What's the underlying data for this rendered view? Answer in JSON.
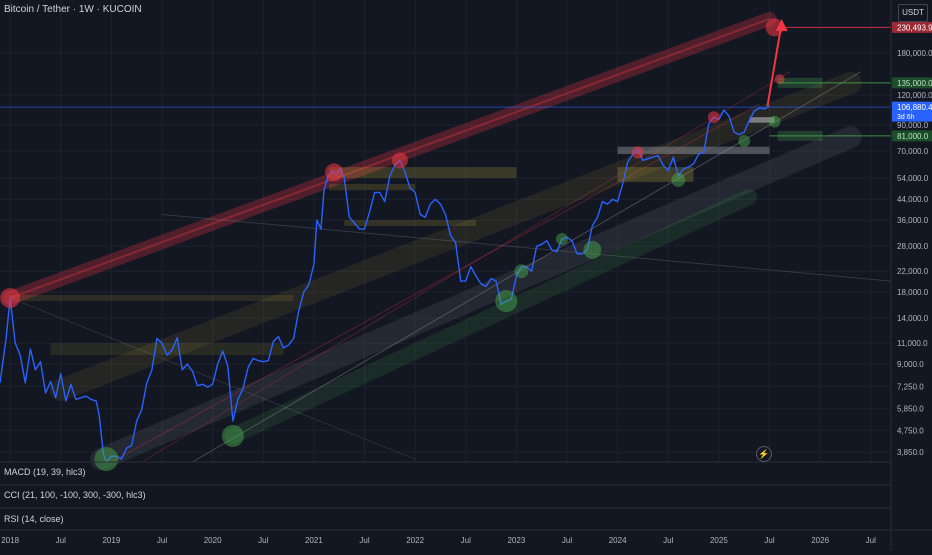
{
  "title": "Bitcoin / Tether · 1W · KUCOIN",
  "currency": "USDT",
  "indicators": {
    "macd": "MACD (19, 39, hlc3)",
    "cci": "CCI (21, 100, -100, 300, -300, hlc3)",
    "rsi": "RSI (14, close)"
  },
  "price_tags": {
    "target": "230,493.9",
    "upper_zone": "135,000.0",
    "last_price": "106,880.4",
    "countdown": "3d 6h",
    "lower_zone": "81,000.0"
  },
  "icons": {
    "flash": "lightning-icon"
  },
  "colors": {
    "background": "#131722",
    "price_line": "#2962ff",
    "resistance": "#f23645",
    "support": "#4caf50",
    "zone_yellow": "#c9b43a",
    "channel_gray": "#9598a1"
  },
  "chart_data": {
    "type": "line",
    "title": "Bitcoin / Tether · 1W · KUCOIN",
    "xlabel": "",
    "ylabel": "",
    "y_scale": "log",
    "ylim": [
      3500,
      300000
    ],
    "xlim": [
      2017.9,
      2026.7
    ],
    "x_tick_labels": [
      "2018",
      "Jul",
      "2019",
      "Jul",
      "2020",
      "Jul",
      "2021",
      "Jul",
      "2022",
      "Jul",
      "2023",
      "Jul",
      "2024",
      "Jul",
      "2025",
      "Jul",
      "2026",
      "Jul"
    ],
    "x_tick_values": [
      2018.0,
      2018.5,
      2019.0,
      2019.5,
      2020.0,
      2020.5,
      2021.0,
      2021.5,
      2022.0,
      2022.5,
      2023.0,
      2023.5,
      2024.0,
      2024.5,
      2025.0,
      2025.5,
      2026.0,
      2026.5
    ],
    "y_tick_labels": [
      "180,000.0",
      "120,000.0",
      "90,000.0",
      "70,000.0",
      "54,000.0",
      "44,000.0",
      "36,000.0",
      "28,000.0",
      "22,000.0",
      "18,000.0",
      "14,000.0",
      "11,000.0",
      "9,000.0",
      "7,250.0",
      "5,850.0",
      "4,750.0",
      "3,850.0"
    ],
    "y_tick_values": [
      180000,
      120000,
      90000,
      70000,
      54000,
      44000,
      36000,
      28000,
      22000,
      18000,
      14000,
      11000,
      9000,
      7250,
      5850,
      4750,
      3850
    ],
    "grid": true,
    "series": [
      {
        "x": [
          2017.9,
          2017.96,
          2018.0,
          2018.05,
          2018.1,
          2018.15,
          2018.2,
          2018.25,
          2018.3,
          2018.35,
          2018.4,
          2018.45,
          2018.5,
          2018.55,
          2018.6,
          2018.65,
          2018.7,
          2018.75,
          2018.8,
          2018.85,
          2018.88,
          2018.92,
          2018.95,
          2019.0,
          2019.05,
          2019.1,
          2019.15,
          2019.2,
          2019.25,
          2019.3,
          2019.35,
          2019.4,
          2019.45,
          2019.5,
          2019.55,
          2019.6,
          2019.65,
          2019.7,
          2019.75,
          2019.8,
          2019.85,
          2019.9,
          2019.95,
          2020.0,
          2020.05,
          2020.1,
          2020.15,
          2020.2,
          2020.25,
          2020.3,
          2020.35,
          2020.4,
          2020.45,
          2020.5,
          2020.55,
          2020.6,
          2020.65,
          2020.7,
          2020.75,
          2020.8,
          2020.85,
          2020.9,
          2020.95,
          2021.0,
          2021.03,
          2021.07,
          2021.1,
          2021.14,
          2021.18,
          2021.22,
          2021.26,
          2021.3,
          2021.35,
          2021.4,
          2021.45,
          2021.5,
          2021.55,
          2021.6,
          2021.65,
          2021.7,
          2021.75,
          2021.8,
          2021.85,
          2021.9,
          2021.95,
          2022.0,
          2022.05,
          2022.1,
          2022.15,
          2022.2,
          2022.25,
          2022.3,
          2022.35,
          2022.4,
          2022.45,
          2022.5,
          2022.55,
          2022.6,
          2022.65,
          2022.7,
          2022.75,
          2022.8,
          2022.85,
          2022.9,
          2022.95,
          2023.0,
          2023.05,
          2023.1,
          2023.15,
          2023.2,
          2023.25,
          2023.3,
          2023.35,
          2023.4,
          2023.45,
          2023.5,
          2023.55,
          2023.6,
          2023.65,
          2023.7,
          2023.75,
          2023.8,
          2023.85,
          2023.9,
          2023.95,
          2024.0,
          2024.05,
          2024.1,
          2024.15,
          2024.2,
          2024.25,
          2024.3,
          2024.35,
          2024.4,
          2024.45,
          2024.5,
          2024.55,
          2024.6,
          2024.65,
          2024.7,
          2024.75,
          2024.8,
          2024.85,
          2024.9,
          2024.95,
          2025.0,
          2025.05,
          2025.1,
          2025.15,
          2025.2,
          2025.25,
          2025.3,
          2025.35,
          2025.4,
          2025.45,
          2025.5
        ],
        "y": [
          7500,
          11500,
          17000,
          11000,
          9800,
          7500,
          10400,
          8500,
          9200,
          6800,
          7600,
          6500,
          8200,
          6300,
          7400,
          6400,
          6500,
          6600,
          6400,
          6300,
          5500,
          3800,
          3500,
          3700,
          3700,
          3600,
          4000,
          4100,
          5200,
          5800,
          7500,
          8500,
          11500,
          11000,
          9800,
          10300,
          11600,
          8500,
          9000,
          8400,
          7300,
          7400,
          7200,
          7400,
          9000,
          10200,
          8800,
          5200,
          6400,
          7100,
          8700,
          9500,
          9300,
          9200,
          9300,
          11200,
          11700,
          10500,
          10800,
          11500,
          15000,
          18000,
          19300,
          23500,
          36000,
          33000,
          48000,
          55000,
          58000,
          56000,
          59000,
          54000,
          37000,
          35000,
          33000,
          33000,
          39000,
          47000,
          47000,
          43000,
          55000,
          61000,
          64000,
          57000,
          49000,
          47000,
          38000,
          37000,
          42000,
          44000,
          42000,
          38000,
          31000,
          29000,
          20000,
          20000,
          23000,
          21000,
          19500,
          19000,
          20500,
          20000,
          16000,
          16500,
          16800,
          21000,
          23000,
          23000,
          22000,
          28000,
          28500,
          29500,
          27000,
          26500,
          30000,
          30500,
          29500,
          26000,
          26000,
          27000,
          34000,
          37000,
          43000,
          42000,
          44000,
          43000,
          51000,
          63000,
          68000,
          71000,
          64000,
          65000,
          66000,
          67000,
          61000,
          58000,
          66000,
          55000,
          59000,
          60000,
          62000,
          68000,
          69000,
          91000,
          97000,
          95000,
          104000,
          98000,
          84000,
          82000,
          84000,
          94000,
          103000,
          106000,
          105000,
          108000
        ],
        "color": "#2962ff"
      }
    ],
    "annotations": [
      {
        "type": "label",
        "text": "230,493.9",
        "y": 230493.9
      },
      {
        "type": "label",
        "text": "135,000.0",
        "y": 135000
      },
      {
        "type": "label",
        "text": "106,880.4",
        "y": 106880.4
      },
      {
        "type": "label",
        "text": "81,000.0",
        "y": 81000
      }
    ]
  }
}
